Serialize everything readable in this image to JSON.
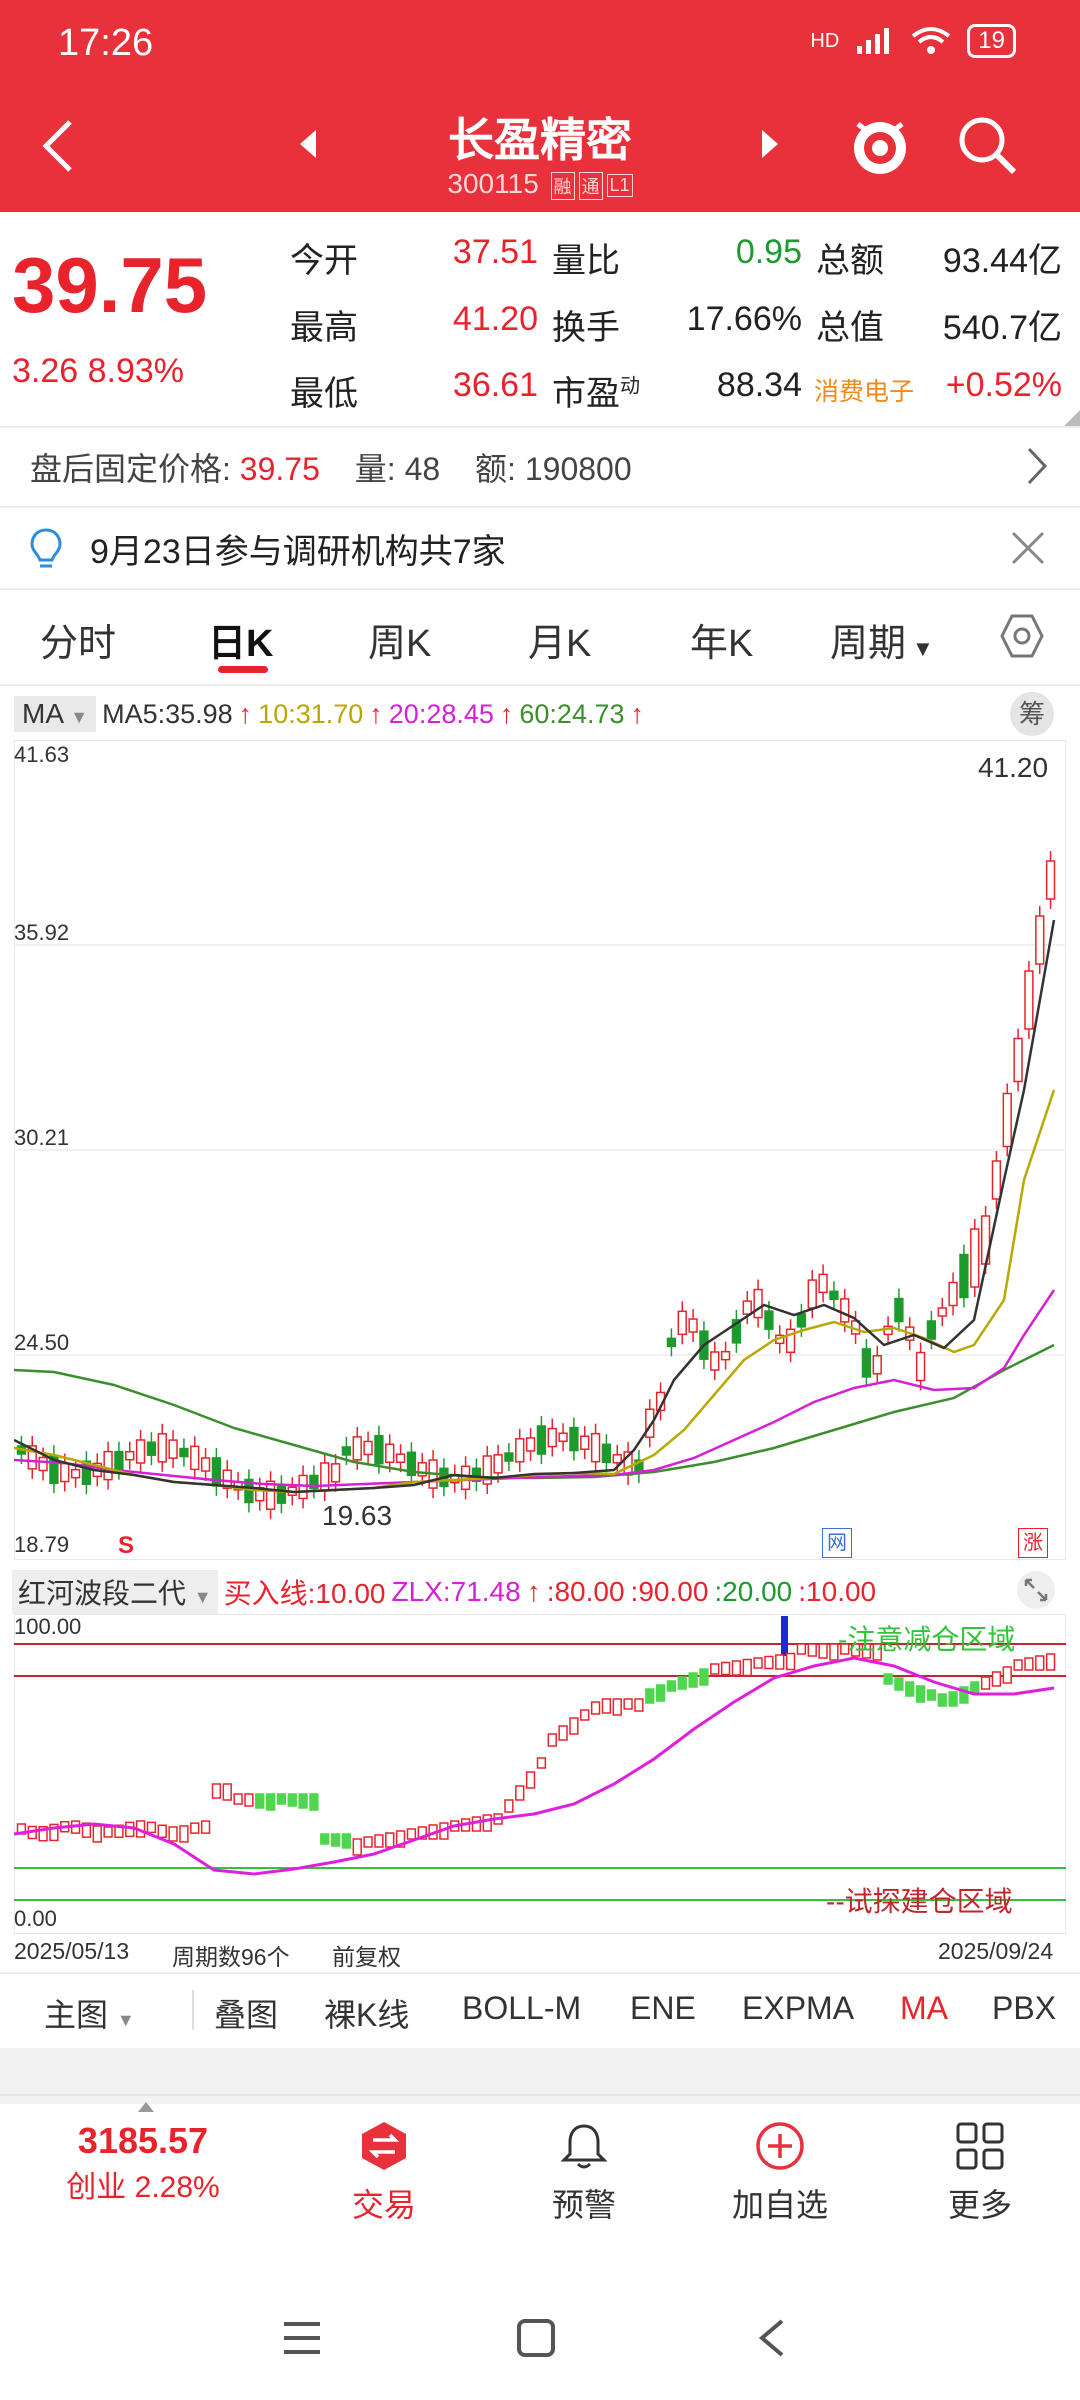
{
  "status": {
    "time": "17:26",
    "battery": "19",
    "network": "HD"
  },
  "header": {
    "title": "长盈精密",
    "code": "300115",
    "tag1": "融",
    "tag2": "通",
    "tag3": "L1"
  },
  "quote": {
    "price": "39.75",
    "change": "3.26 8.93%",
    "rows": [
      {
        "l1": "今开",
        "v1": "37.51",
        "l2": "量比",
        "v2": "0.95",
        "l3": "总额",
        "v3": "93.44亿"
      },
      {
        "l1": "最高",
        "v1": "41.20",
        "l2": "换手",
        "v2": "17.66%",
        "l3": "总值",
        "v3": "540.7亿"
      },
      {
        "l1": "最低",
        "v1": "36.61",
        "l2": "市盈",
        "l2sup": "动",
        "v2": "88.34",
        "l3": "消费电子",
        "v3": "+0.52%"
      }
    ]
  },
  "after_hours": {
    "label": "盘后固定价格:",
    "price": "39.75",
    "vol_label": "量:",
    "vol": "48",
    "amt_label": "额:",
    "amt": "190800"
  },
  "notice": {
    "text": "9月23日参与调研机构共7家"
  },
  "ktabs": [
    "分时",
    "日K",
    "周K",
    "月K",
    "年K",
    "周期"
  ],
  "ma_legend": {
    "btn": "MA",
    "ma5": "MA5:35.98",
    "ma10": "10:31.70",
    "ma20": "20:28.45",
    "ma60": "60:24.73",
    "chip": "筹"
  },
  "main_chart": {
    "y_ticks": [
      "41.63",
      "35.92",
      "30.21",
      "24.50",
      "18.79"
    ],
    "high_label": "41.20",
    "low_label": "19.63",
    "s_mark": "S",
    "mark_c": "网",
    "mark_e": "涨"
  },
  "indicator": {
    "name": "红河波段二代",
    "buy_line": "买入线:10.00",
    "zlx": "ZLX:71.48",
    "lv80": ":80.00",
    "lv90": ":90.00",
    "lv20": ":20.00",
    "lv10": ":10.00",
    "top_label": "100.00",
    "bottom_label": "0.00",
    "zone_top": "-注意减仓区域",
    "zone_bottom": "--试探建仓区域"
  },
  "date_axis": {
    "start": "2025/05/13",
    "count": "周期数96个",
    "adj": "前复权",
    "end": "2025/09/24"
  },
  "itabs": [
    "主图",
    "叠图",
    "裸K线",
    "BOLL-M",
    "ENE",
    "EXPMA",
    "MA",
    "PBX"
  ],
  "bottom_nav": {
    "index_value": "3185.57",
    "index_name": "创业 2.28%",
    "trade": "交易",
    "alert": "预警",
    "add": "加自选",
    "more": "更多"
  },
  "colors": {
    "brand_red": "#e8313a",
    "up": "#e8232c",
    "down": "#1d9a2d",
    "ma5": "#333333",
    "ma10": "#b8a800",
    "ma20": "#d61fd6",
    "ma60": "#3a8f2c"
  }
}
